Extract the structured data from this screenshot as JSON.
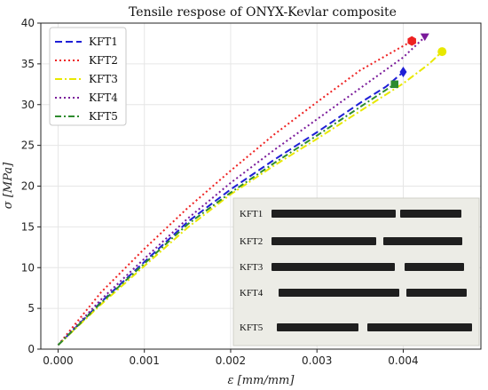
{
  "chart_data": {
    "type": "line",
    "title": "Tensile respose of ONYX-Kevlar composite",
    "xlabel": "ε [mm/mm]",
    "ylabel": "σ [MPa]",
    "xlim": [
      -0.0002,
      0.0049
    ],
    "ylim": [
      0,
      40
    ],
    "xticks": [
      "0.000",
      "0.001",
      "0.002",
      "0.003",
      "0.004"
    ],
    "xtick_values": [
      0.0,
      0.001,
      0.002,
      0.003,
      0.004
    ],
    "yticks": [
      "0",
      "5",
      "10",
      "15",
      "20",
      "25",
      "30",
      "35",
      "40"
    ],
    "ytick_values": [
      0,
      5,
      10,
      15,
      20,
      25,
      30,
      35,
      40
    ],
    "grid": true,
    "legend_position": "top-left",
    "series": [
      {
        "name": "KFT1",
        "color": "#1f1fd6",
        "dash": "8,4",
        "marker": "diamond",
        "x": [
          0.0,
          0.0005,
          0.001,
          0.0015,
          0.002,
          0.0025,
          0.003,
          0.0035,
          0.0038,
          0.004
        ],
        "y": [
          0.5,
          5.8,
          10.7,
          15.6,
          19.6,
          23.2,
          26.6,
          30.2,
          32.2,
          34.0
        ]
      },
      {
        "name": "KFT2",
        "color": "#ee2222",
        "dash": "2,3",
        "marker": "hexagon",
        "x": [
          0.0,
          0.0005,
          0.001,
          0.0015,
          0.002,
          0.0025,
          0.003,
          0.0035,
          0.0041
        ],
        "y": [
          0.5,
          7.0,
          12.3,
          17.3,
          21.9,
          26.3,
          30.3,
          34.2,
          37.8
        ]
      },
      {
        "name": "KFT3",
        "color": "#e8e800",
        "dash": "8,3,2,3",
        "marker": "circle",
        "x": [
          0.0,
          0.0005,
          0.001,
          0.0015,
          0.002,
          0.0025,
          0.003,
          0.0035,
          0.004,
          0.0043,
          0.00445
        ],
        "y": [
          0.5,
          5.5,
          10.2,
          14.9,
          19.0,
          22.5,
          25.8,
          29.2,
          32.6,
          35.0,
          36.5
        ]
      },
      {
        "name": "KFT4",
        "color": "#7a1a9a",
        "dash": "2,3",
        "marker": "triangle-down",
        "x": [
          0.0,
          0.0005,
          0.001,
          0.0015,
          0.002,
          0.0025,
          0.003,
          0.0035,
          0.004,
          0.00425
        ],
        "y": [
          0.5,
          6.1,
          11.1,
          16.0,
          20.4,
          24.4,
          28.2,
          32.0,
          35.8,
          38.3
        ]
      },
      {
        "name": "KFT5",
        "color": "#2e8b2e",
        "dash": "7,3,2,3",
        "marker": "square",
        "x": [
          0.0,
          0.0005,
          0.001,
          0.0015,
          0.002,
          0.0025,
          0.003,
          0.0035,
          0.0039
        ],
        "y": [
          0.5,
          5.7,
          10.5,
          15.3,
          19.2,
          22.8,
          26.2,
          29.7,
          32.5
        ]
      }
    ],
    "inset": {
      "labels": [
        "KFT1",
        "KFT2",
        "KFT3",
        "KFT4",
        "KFT5"
      ]
    }
  }
}
